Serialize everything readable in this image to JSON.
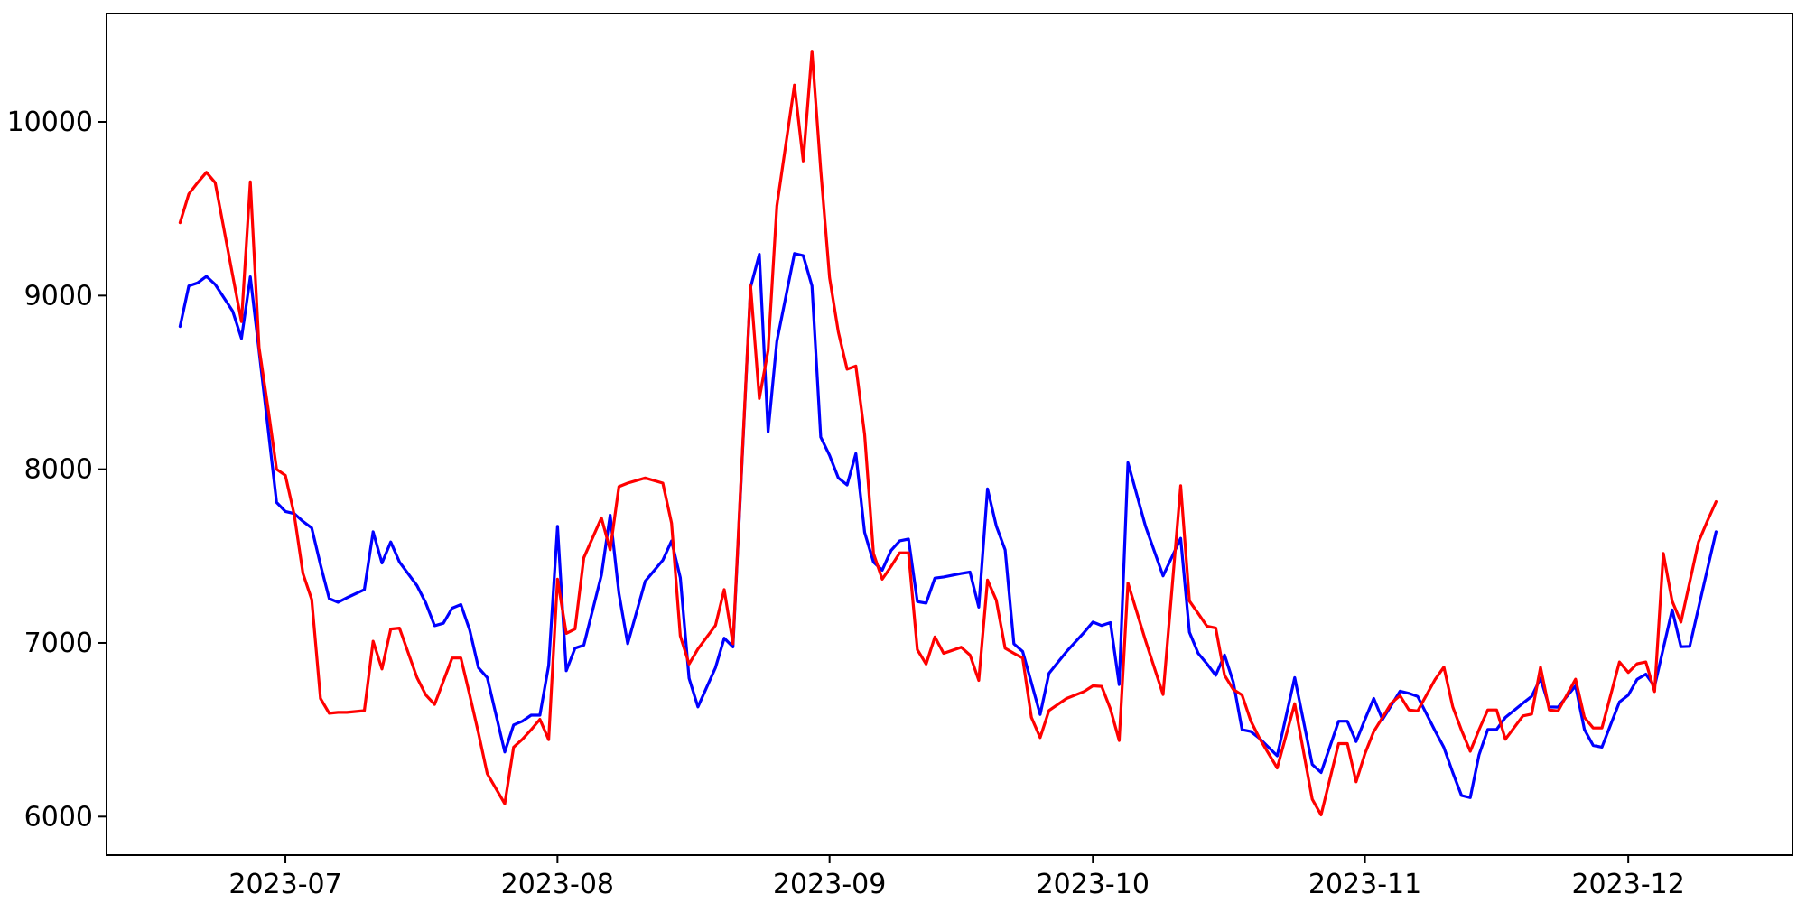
{
  "chart_data": {
    "type": "line",
    "title": "",
    "xlabel": "",
    "ylabel": "",
    "grid": false,
    "legend": null,
    "background_color": "#ffffff",
    "axis_color": "#000000",
    "x_ticks": [
      {
        "date": "2023-07-01",
        "label": "2023-07"
      },
      {
        "date": "2023-08-01",
        "label": "2023-08"
      },
      {
        "date": "2023-09-01",
        "label": "2023-09"
      },
      {
        "date": "2023-10-01",
        "label": "2023-10"
      },
      {
        "date": "2023-11-01",
        "label": "2023-11"
      },
      {
        "date": "2023-12-01",
        "label": "2023-12"
      }
    ],
    "y_ticks": [
      6000,
      7000,
      8000,
      9000,
      10000
    ],
    "xlim": [
      "2023-06-10T15:00:00Z",
      "2023-12-19T17:00:00Z"
    ],
    "ylim": [
      5778,
      10624
    ],
    "dates": [
      "2023-06-19",
      "2023-06-20",
      "2023-06-21",
      "2023-06-22",
      "2023-06-23",
      "2023-06-25",
      "2023-06-26",
      "2023-06-27",
      "2023-06-28",
      "2023-06-29",
      "2023-06-30",
      "2023-07-01",
      "2023-07-02",
      "2023-07-03",
      "2023-07-04",
      "2023-07-05",
      "2023-07-06",
      "2023-07-07",
      "2023-07-08",
      "2023-07-10",
      "2023-07-11",
      "2023-07-12",
      "2023-07-13",
      "2023-07-14",
      "2023-07-16",
      "2023-07-17",
      "2023-07-18",
      "2023-07-19",
      "2023-07-20",
      "2023-07-21",
      "2023-07-22",
      "2023-07-23",
      "2023-07-24",
      "2023-07-26",
      "2023-07-27",
      "2023-07-28",
      "2023-07-29",
      "2023-07-30",
      "2023-07-31",
      "2023-08-01",
      "2023-08-02",
      "2023-08-03",
      "2023-08-04",
      "2023-08-06",
      "2023-08-07",
      "2023-08-08",
      "2023-08-09",
      "2023-08-11",
      "2023-08-13",
      "2023-08-14",
      "2023-08-15",
      "2023-08-16",
      "2023-08-17",
      "2023-08-19",
      "2023-08-20",
      "2023-08-21",
      "2023-08-23",
      "2023-08-24",
      "2023-08-25",
      "2023-08-26",
      "2023-08-28",
      "2023-08-29",
      "2023-08-30",
      "2023-08-31",
      "2023-09-01",
      "2023-09-02",
      "2023-09-03",
      "2023-09-04",
      "2023-09-05",
      "2023-09-06",
      "2023-09-07",
      "2023-09-08",
      "2023-09-09",
      "2023-09-10",
      "2023-09-11",
      "2023-09-12",
      "2023-09-13",
      "2023-09-14",
      "2023-09-16",
      "2023-09-17",
      "2023-09-18",
      "2023-09-19",
      "2023-09-20",
      "2023-09-21",
      "2023-09-22",
      "2023-09-23",
      "2023-09-24",
      "2023-09-25",
      "2023-09-26",
      "2023-09-28",
      "2023-09-30",
      "2023-10-01",
      "2023-10-02",
      "2023-10-03",
      "2023-10-04",
      "2023-10-05",
      "2023-10-07",
      "2023-10-09",
      "2023-10-11",
      "2023-10-12",
      "2023-10-13",
      "2023-10-14",
      "2023-10-15",
      "2023-10-16",
      "2023-10-17",
      "2023-10-18",
      "2023-10-19",
      "2023-10-20",
      "2023-10-22",
      "2023-10-24",
      "2023-10-26",
      "2023-10-27",
      "2023-10-29",
      "2023-10-30",
      "2023-10-31",
      "2023-11-01",
      "2023-11-02",
      "2023-11-03",
      "2023-11-04",
      "2023-11-05",
      "2023-11-06",
      "2023-11-07",
      "2023-11-09",
      "2023-11-10",
      "2023-11-11",
      "2023-11-12",
      "2023-11-13",
      "2023-11-14",
      "2023-11-15",
      "2023-11-16",
      "2023-11-17",
      "2023-11-19",
      "2023-11-20",
      "2023-11-21",
      "2023-11-22",
      "2023-11-23",
      "2023-11-25",
      "2023-11-26",
      "2023-11-27",
      "2023-11-28",
      "2023-11-30",
      "2023-12-01",
      "2023-12-02",
      "2023-12-03",
      "2023-12-04",
      "2023-12-05",
      "2023-12-06",
      "2023-12-07",
      "2023-12-08",
      "2023-12-09",
      "2023-12-10",
      "2023-12-11"
    ],
    "series": [
      {
        "name": "blue-series",
        "color": "#0000ff",
        "values": [
          8822,
          9056,
          9073,
          9111,
          9064,
          8910,
          8753,
          9108,
          8680,
          8245,
          7809,
          7757,
          7745,
          7700,
          7662,
          7450,
          7255,
          7234,
          7260,
          7307,
          7640,
          7460,
          7581,
          7466,
          7330,
          7229,
          7099,
          7113,
          7200,
          7221,
          7073,
          6857,
          6800,
          6372,
          6528,
          6549,
          6584,
          6584,
          6871,
          7671,
          6840,
          6970,
          6987,
          7390,
          7736,
          7286,
          6995,
          7355,
          7476,
          7587,
          7376,
          6796,
          6632,
          6857,
          7027,
          6977,
          9048,
          9238,
          8216,
          8736,
          9242,
          9230,
          9056,
          8185,
          8080,
          7950,
          7910,
          8090,
          7636,
          7466,
          7419,
          7532,
          7588,
          7598,
          7238,
          7229,
          7373,
          7380,
          7400,
          7408,
          7206,
          7887,
          7674,
          7536,
          6995,
          6951,
          6770,
          6588,
          6825,
          6950,
          7060,
          7120,
          7100,
          7117,
          6760,
          8038,
          7671,
          7386,
          7602,
          7062,
          6940,
          6880,
          6814,
          6930,
          6774,
          6500,
          6490,
          6450,
          6350,
          6800,
          6300,
          6254,
          6549,
          6549,
          6432,
          6560,
          6680,
          6559,
          6640,
          6722,
          6710,
          6692,
          6493,
          6398,
          6254,
          6121,
          6109,
          6355,
          6502,
          6502,
          6571,
          6653,
          6692,
          6796,
          6632,
          6630,
          6753,
          6502,
          6410,
          6400,
          6660,
          6700,
          6790,
          6820,
          6750,
          6970,
          7190,
          6978,
          6980,
          7200,
          7420,
          7640
        ]
      },
      {
        "name": "red-series",
        "color": "#ff0000",
        "values": [
          9420,
          9585,
          9650,
          9710,
          9650,
          9115,
          8850,
          9655,
          8700,
          8360,
          8000,
          7965,
          7740,
          7400,
          7250,
          6680,
          6595,
          6600,
          6600,
          6610,
          7010,
          6850,
          7080,
          7085,
          6800,
          6700,
          6646,
          6780,
          6913,
          6913,
          6700,
          6480,
          6247,
          6074,
          6400,
          6445,
          6500,
          6560,
          6443,
          7367,
          7055,
          7080,
          7490,
          7720,
          7536,
          7900,
          7920,
          7950,
          7920,
          7690,
          7040,
          6878,
          6965,
          7100,
          7307,
          6995,
          9056,
          8407,
          8684,
          9516,
          10212,
          9775,
          10407,
          9723,
          9103,
          8790,
          8576,
          8594,
          8200,
          7515,
          7367,
          7440,
          7519,
          7519,
          6961,
          6878,
          7034,
          6940,
          6975,
          6930,
          6784,
          7362,
          7246,
          6969,
          6940,
          6913,
          6571,
          6455,
          6611,
          6680,
          6720,
          6753,
          6750,
          6620,
          6438,
          7345,
          7013,
          6703,
          7905,
          7241,
          7170,
          7096,
          7086,
          6814,
          6732,
          6700,
          6550,
          6450,
          6280,
          6650,
          6100,
          6010,
          6420,
          6420,
          6200,
          6363,
          6490,
          6570,
          6653,
          6697,
          6614,
          6608,
          6790,
          6861,
          6632,
          6497,
          6376,
          6500,
          6614,
          6614,
          6445,
          6580,
          6590,
          6860,
          6614,
          6608,
          6791,
          6571,
          6510,
          6510,
          6890,
          6830,
          6880,
          6890,
          6720,
          7515,
          7240,
          7120,
          7350,
          7580,
          7700,
          7813
        ]
      }
    ]
  }
}
